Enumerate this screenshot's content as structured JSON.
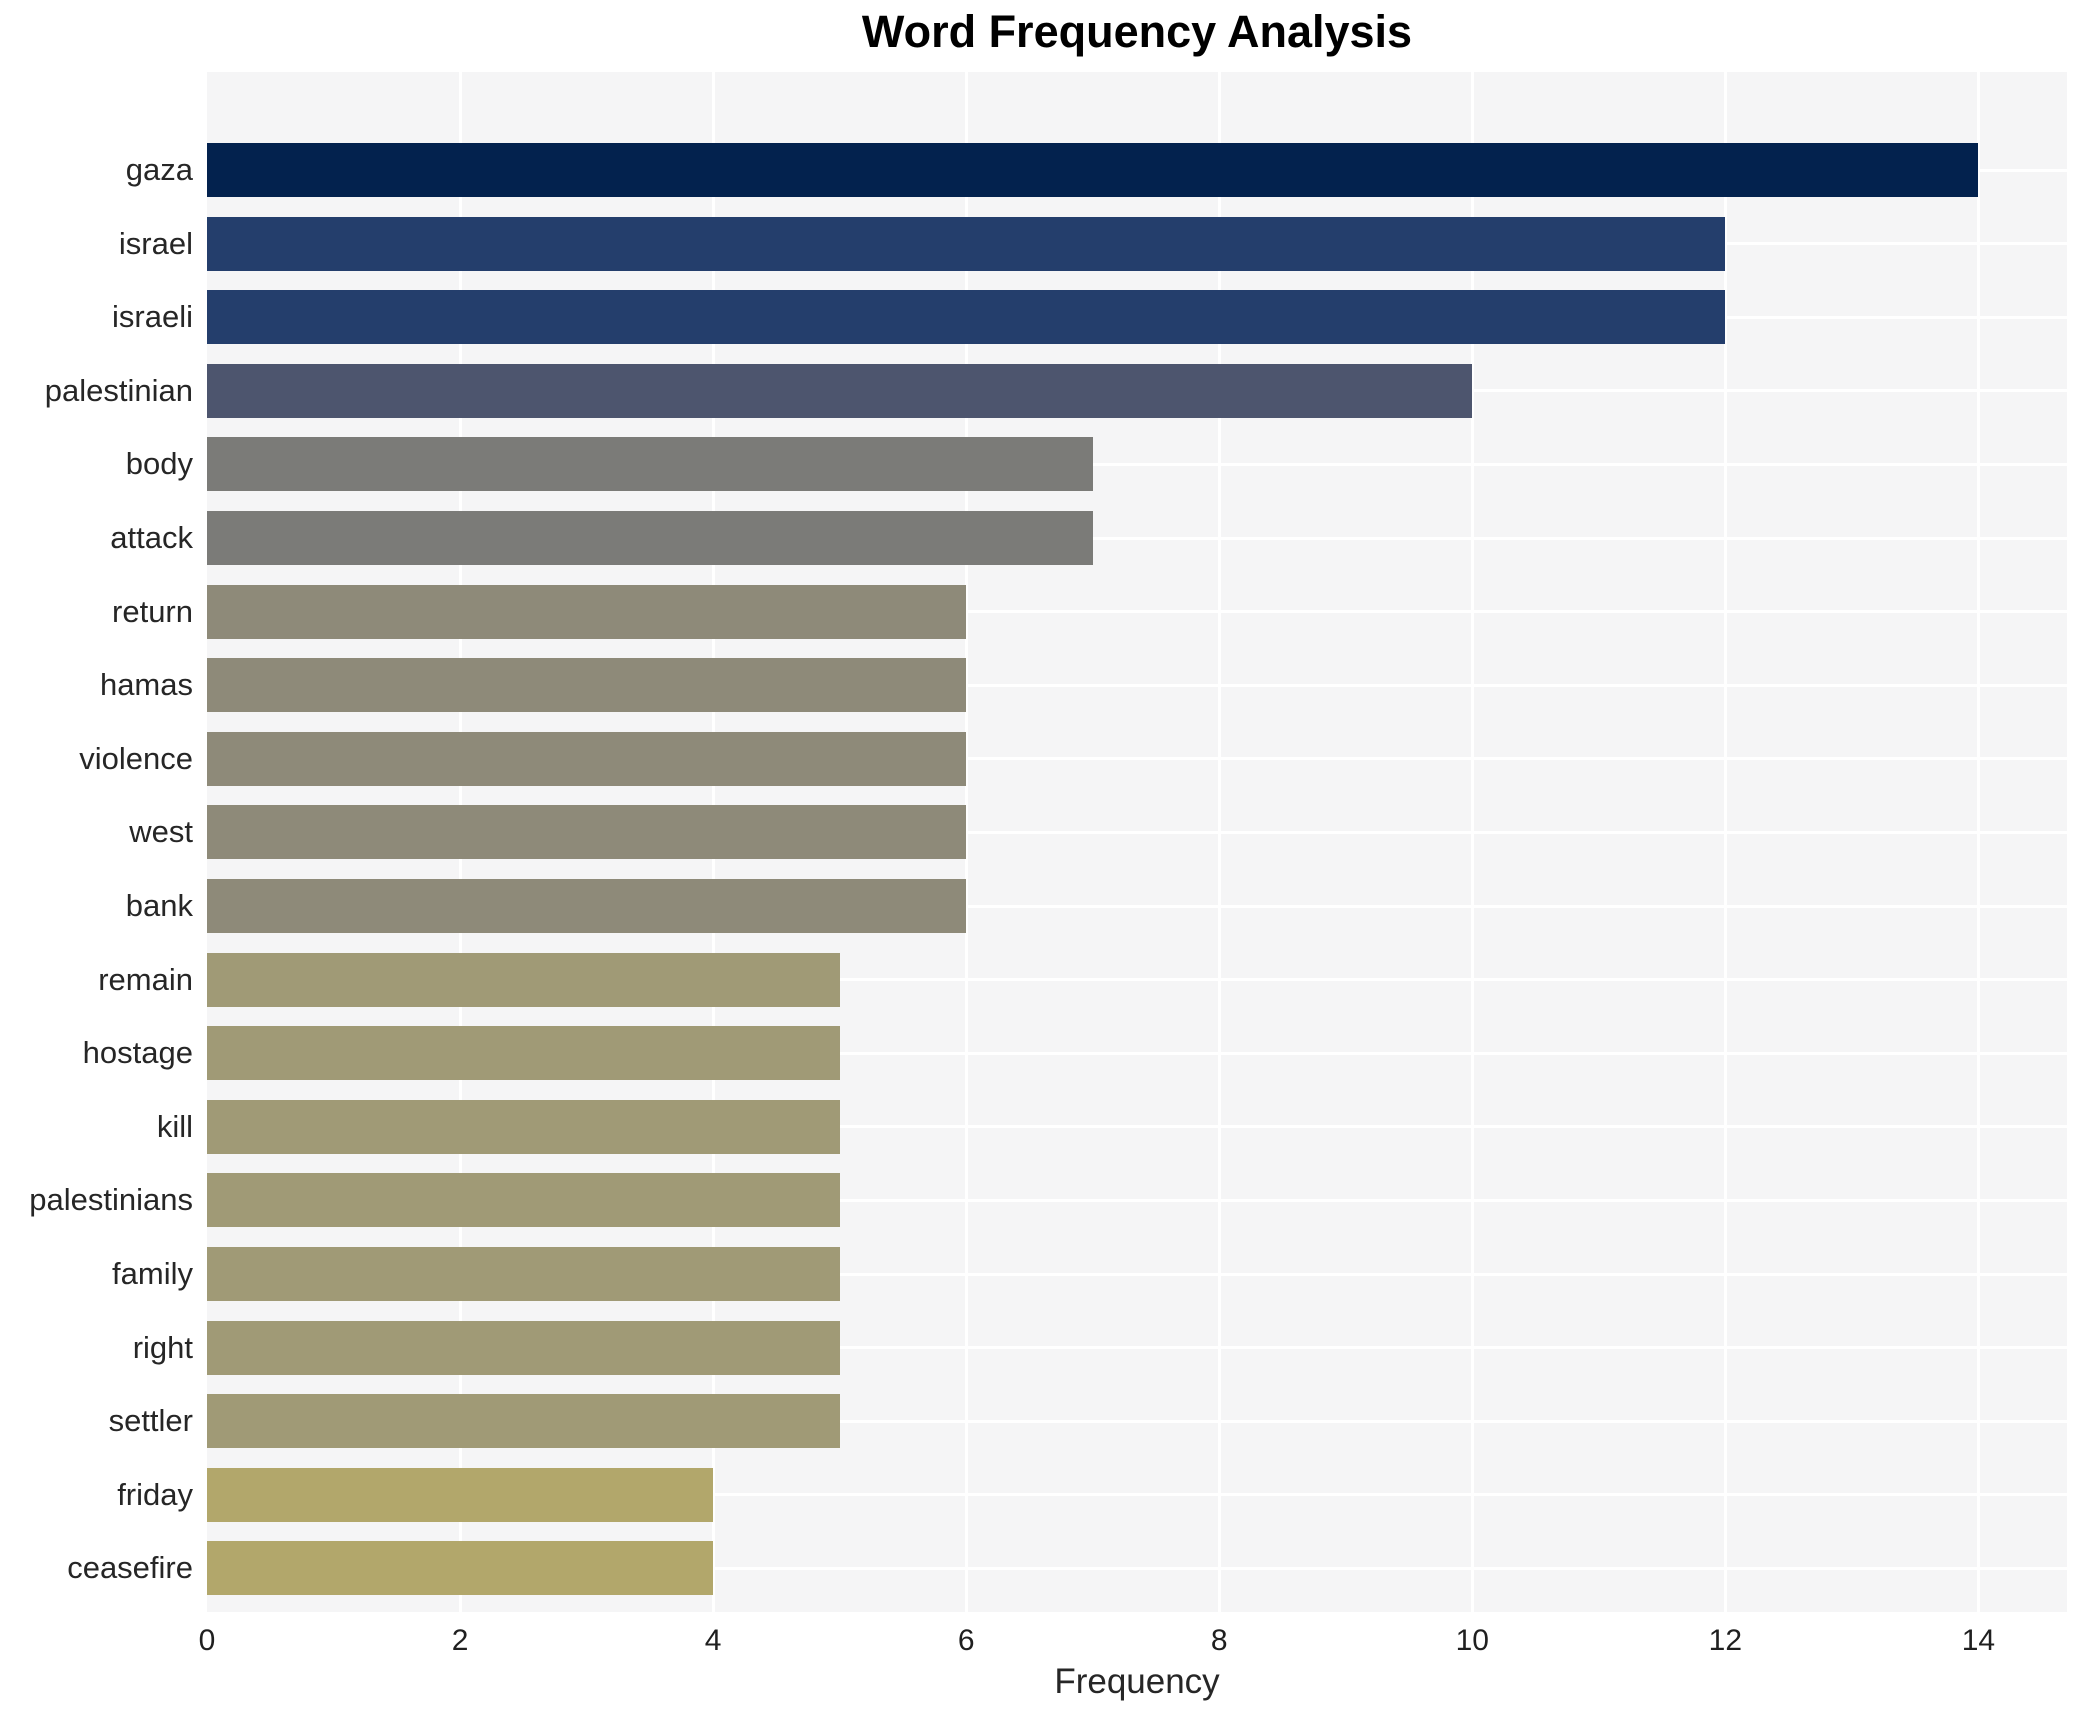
{
  "title": "Word Frequency Analysis",
  "chart_data": {
    "type": "bar",
    "orientation": "horizontal",
    "title": "Word Frequency Analysis",
    "xlabel": "Frequency",
    "ylabel": "",
    "categories": [
      "gaza",
      "israel",
      "israeli",
      "palestinian",
      "body",
      "attack",
      "return",
      "hamas",
      "violence",
      "west",
      "bank",
      "remain",
      "hostage",
      "kill",
      "palestinians",
      "family",
      "right",
      "settler",
      "friday",
      "ceasefire"
    ],
    "values": [
      14,
      12,
      12,
      10,
      7,
      7,
      6,
      6,
      6,
      6,
      6,
      5,
      5,
      5,
      5,
      5,
      5,
      5,
      4,
      4
    ],
    "bar_colors": [
      "#03224e",
      "#243e6c",
      "#243e6c",
      "#4d556e",
      "#7b7b78",
      "#7b7b78",
      "#8e8a79",
      "#8e8a79",
      "#8e8a79",
      "#8e8a79",
      "#8e8a79",
      "#a09a76",
      "#a09a76",
      "#a09a76",
      "#a09a76",
      "#a09a76",
      "#a09a76",
      "#a09a76",
      "#b2a76b",
      "#b2a76b"
    ],
    "xticks": [
      0,
      2,
      4,
      6,
      8,
      10,
      12,
      14
    ],
    "xlim": [
      0,
      14.7
    ],
    "grid": true,
    "legend": "none",
    "plot_background": "#f5f5f6",
    "grid_color": "#ffffff",
    "text_color": "#262626"
  }
}
